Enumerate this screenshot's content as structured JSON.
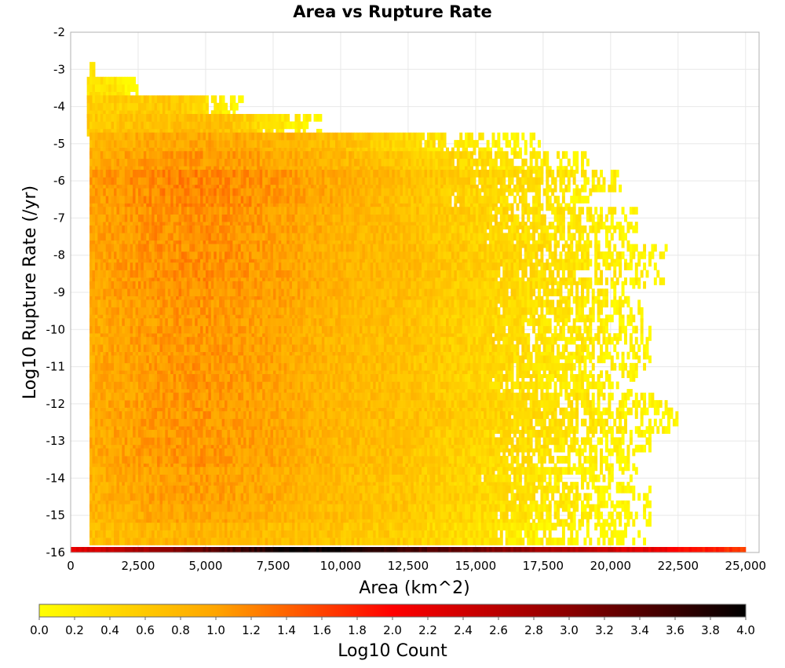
{
  "chart_data": {
    "type": "heatmap",
    "title": "Area vs Rupture Rate",
    "xlabel": "Area (km^2)",
    "ylabel": "Log10 Rupture Rate (/yr)",
    "colorbar_label": "Log10 Count",
    "xlim": [
      0,
      25500
    ],
    "ylim": [
      -16,
      -2
    ],
    "x_ticks": [
      0,
      2500,
      5000,
      7500,
      10000,
      12500,
      15000,
      17500,
      20000,
      22500,
      25000
    ],
    "x_tick_labels": [
      "0",
      "2,500",
      "5,000",
      "7,500",
      "10,000",
      "12,500",
      "15,000",
      "17,500",
      "20,000",
      "22,500",
      "25,000"
    ],
    "y_ticks": [
      -2,
      -3,
      -4,
      -5,
      -6,
      -7,
      -8,
      -9,
      -10,
      -11,
      -12,
      -13,
      -14,
      -15,
      -16
    ],
    "y_tick_labels": [
      "-2",
      "-3",
      "-4",
      "-5",
      "-6",
      "-7",
      "-8",
      "-9",
      "-10",
      "-11",
      "-12",
      "-13",
      "-14",
      "-15",
      "-16"
    ],
    "colorbar_range": [
      0,
      4
    ],
    "colorbar_ticks": [
      0.0,
      0.2,
      0.4,
      0.6,
      0.8,
      1.0,
      1.2,
      1.4,
      1.6,
      1.8,
      2.0,
      2.2,
      2.4,
      2.6,
      2.8,
      3.0,
      3.2,
      3.4,
      3.6,
      3.8,
      4.0
    ],
    "colorbar_tick_labels": [
      "0.0",
      "0.2",
      "0.4",
      "0.6",
      "0.8",
      "1.0",
      "1.2",
      "1.4",
      "1.6",
      "1.8",
      "2.0",
      "2.2",
      "2.4",
      "2.6",
      "2.8",
      "3.0",
      "3.2",
      "3.4",
      "3.6",
      "3.8",
      "4.0"
    ],
    "colormap": [
      "#ffff00",
      "#ffa500",
      "#ff0000",
      "#8b0000",
      "#000000"
    ],
    "grid": true,
    "bin_size": {
      "x": 100,
      "y": 0.2
    },
    "density_rows": [
      {
        "y": -3.1,
        "x_start": 700,
        "x_end": 900,
        "log10_count": 0.2
      },
      {
        "y": -3.5,
        "x_start": 600,
        "x_end": 2500,
        "log10_count": 0.3
      },
      {
        "y": -4.0,
        "x_start": 600,
        "x_end": 6500,
        "log10_count": 0.5
      },
      {
        "y": -4.5,
        "x_start": 600,
        "x_end": 9500,
        "log10_count": 0.6
      },
      {
        "y": -5.0,
        "x_start": 700,
        "x_end": 17400,
        "log10_count": 0.8
      },
      {
        "y": -5.5,
        "x_start": 700,
        "x_end": 19300,
        "log10_count": 0.9
      },
      {
        "y": -6.0,
        "x_start": 700,
        "x_end": 20500,
        "log10_count": 1.0
      },
      {
        "y": -6.5,
        "x_start": 700,
        "x_end": 19300,
        "log10_count": 1.0
      },
      {
        "y": -7.0,
        "x_start": 700,
        "x_end": 21000,
        "log10_count": 0.95
      },
      {
        "y": -7.5,
        "x_start": 700,
        "x_end": 21000,
        "log10_count": 0.95
      },
      {
        "y": -8.0,
        "x_start": 700,
        "x_end": 22100,
        "log10_count": 0.95
      },
      {
        "y": -8.5,
        "x_start": 700,
        "x_end": 22000,
        "log10_count": 0.95
      },
      {
        "y": -9.0,
        "x_start": 700,
        "x_end": 21500,
        "log10_count": 0.95
      },
      {
        "y": -9.5,
        "x_start": 700,
        "x_end": 21500,
        "log10_count": 0.9
      },
      {
        "y": -10.0,
        "x_start": 700,
        "x_end": 21500,
        "log10_count": 0.9
      },
      {
        "y": -10.5,
        "x_start": 700,
        "x_end": 21500,
        "log10_count": 0.9
      },
      {
        "y": -11.0,
        "x_start": 700,
        "x_end": 21500,
        "log10_count": 0.9
      },
      {
        "y": -11.5,
        "x_start": 700,
        "x_end": 21000,
        "log10_count": 0.9
      },
      {
        "y": -12.0,
        "x_start": 700,
        "x_end": 22500,
        "log10_count": 0.9
      },
      {
        "y": -12.5,
        "x_start": 700,
        "x_end": 22500,
        "log10_count": 0.9
      },
      {
        "y": -13.0,
        "x_start": 700,
        "x_end": 21500,
        "log10_count": 0.9
      },
      {
        "y": -13.5,
        "x_start": 700,
        "x_end": 21000,
        "log10_count": 0.9
      },
      {
        "y": -14.0,
        "x_start": 700,
        "x_end": 21000,
        "log10_count": 0.85
      },
      {
        "y": -14.5,
        "x_start": 700,
        "x_end": 21500,
        "log10_count": 0.85
      },
      {
        "y": -15.0,
        "x_start": 700,
        "x_end": 21500,
        "log10_count": 0.8
      },
      {
        "y": -15.5,
        "x_start": 700,
        "x_end": 21300,
        "log10_count": 0.7
      },
      {
        "y": -16.0,
        "x_start": 0,
        "x_end": 25000,
        "log10_count": 3.0
      }
    ]
  }
}
